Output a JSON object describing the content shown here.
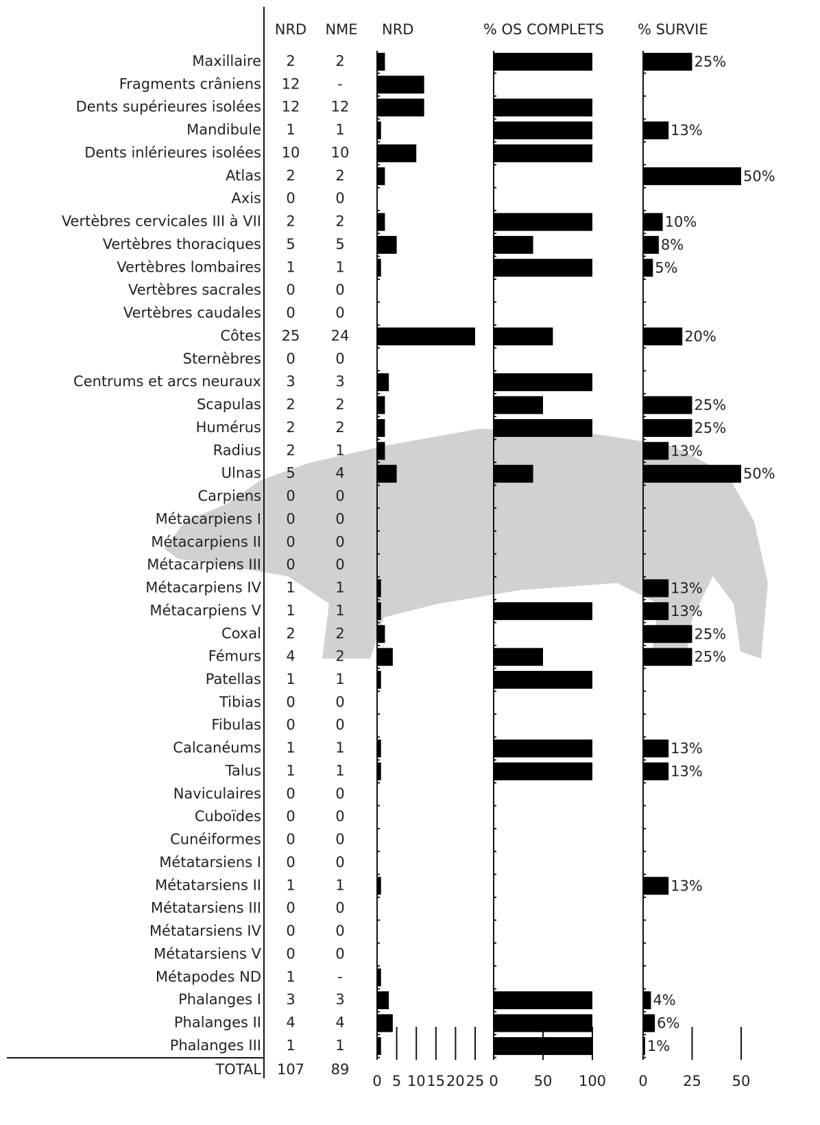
{
  "table": {
    "headers": [
      "NRD",
      "NME"
    ],
    "row_labels": [
      "Maxillaire",
      "Fragments crâniens",
      "Dents supérieures isolées",
      "Mandibule",
      "Dents inlérieures isolées",
      "Atlas",
      "Axis",
      "Vertèbres cervicales III à VII",
      "Vertèbres thoraciques",
      "Vertèbres lombaires",
      "Vertèbres sacrales",
      "Vertèbres caudales",
      "Côtes",
      "Sternèbres",
      "Centrums et arcs neuraux",
      "Scapulas",
      "Humérus",
      "Radius",
      "Ulnas",
      "Carpiens",
      "Métacarpiens I",
      "Métacarpiens II",
      "Métacarpiens III",
      "Métacarpiens IV",
      "Métacarpiens V",
      "Coxal",
      "Fémurs",
      "Patellas",
      "Tibias",
      "Fibulas",
      "Calcanéums",
      "Talus",
      "Naviculaires",
      "Cuboïdes",
      "Cunéiformes",
      "Métatarsiens I",
      "Métatarsiens II",
      "Métatarsiens III",
      "Métatarsiens IV",
      "Métatarsiens V",
      "Métapodes ND",
      "Phalanges I",
      "Phalanges II",
      "Phalanges III"
    ],
    "nme": [
      2,
      "-",
      12,
      1,
      10,
      2,
      0,
      2,
      5,
      1,
      0,
      0,
      24,
      0,
      3,
      2,
      2,
      1,
      4,
      0,
      0,
      0,
      0,
      1,
      1,
      2,
      2,
      1,
      0,
      0,
      1,
      1,
      0,
      0,
      0,
      0,
      1,
      0,
      0,
      0,
      "-",
      3,
      4,
      1
    ],
    "total": {
      "label": "TOTAL",
      "nrd": 107,
      "nme": 89
    }
  },
  "chart_data": [
    {
      "type": "bar",
      "title": "NRD",
      "color": "#000000",
      "values": [
        2,
        12,
        12,
        1,
        10,
        2,
        0,
        2,
        5,
        1,
        0,
        0,
        25,
        0,
        3,
        2,
        2,
        2,
        5,
        0,
        0,
        0,
        0,
        1,
        1,
        2,
        4,
        1,
        0,
        0,
        1,
        1,
        0,
        0,
        0,
        0,
        1,
        0,
        0,
        0,
        1,
        3,
        4,
        1
      ],
      "xlim": [
        0,
        25
      ],
      "xticks": [
        0,
        5,
        10,
        15,
        20,
        25
      ]
    },
    {
      "type": "bar",
      "title": "% OS COMPLETS",
      "color": "#000000",
      "values": [
        100,
        null,
        100,
        100,
        100,
        null,
        null,
        100,
        40,
        100,
        null,
        null,
        60,
        null,
        100,
        50,
        100,
        null,
        40,
        null,
        null,
        null,
        null,
        null,
        100,
        null,
        50,
        100,
        null,
        null,
        100,
        100,
        null,
        null,
        null,
        null,
        null,
        null,
        null,
        null,
        null,
        100,
        100,
        100
      ],
      "xlim": [
        0,
        100
      ],
      "xticks": [
        0,
        50,
        100
      ]
    },
    {
      "type": "bar",
      "title": "% SURVIE",
      "color": "#000000",
      "values": [
        25,
        null,
        null,
        13,
        null,
        50,
        null,
        10,
        8,
        5,
        null,
        null,
        20,
        null,
        null,
        25,
        25,
        13,
        50,
        null,
        null,
        null,
        null,
        13,
        13,
        25,
        25,
        null,
        null,
        null,
        13,
        13,
        null,
        null,
        null,
        null,
        13,
        null,
        null,
        null,
        null,
        4,
        6,
        1
      ],
      "value_labels": [
        "25%",
        null,
        null,
        "13%",
        null,
        "50%",
        null,
        "10%",
        "8%",
        "5%",
        null,
        null,
        "20%",
        null,
        null,
        "25%",
        "25%",
        "13%",
        "50%",
        null,
        null,
        null,
        null,
        "13%",
        "13%",
        "25%",
        "25%",
        null,
        null,
        null,
        "13%",
        "13%",
        null,
        null,
        null,
        null,
        "13%",
        null,
        null,
        null,
        null,
        "4%",
        "6%",
        "1%"
      ],
      "xlim": [
        0,
        50
      ],
      "xticks": [
        0,
        25,
        50
      ]
    }
  ]
}
